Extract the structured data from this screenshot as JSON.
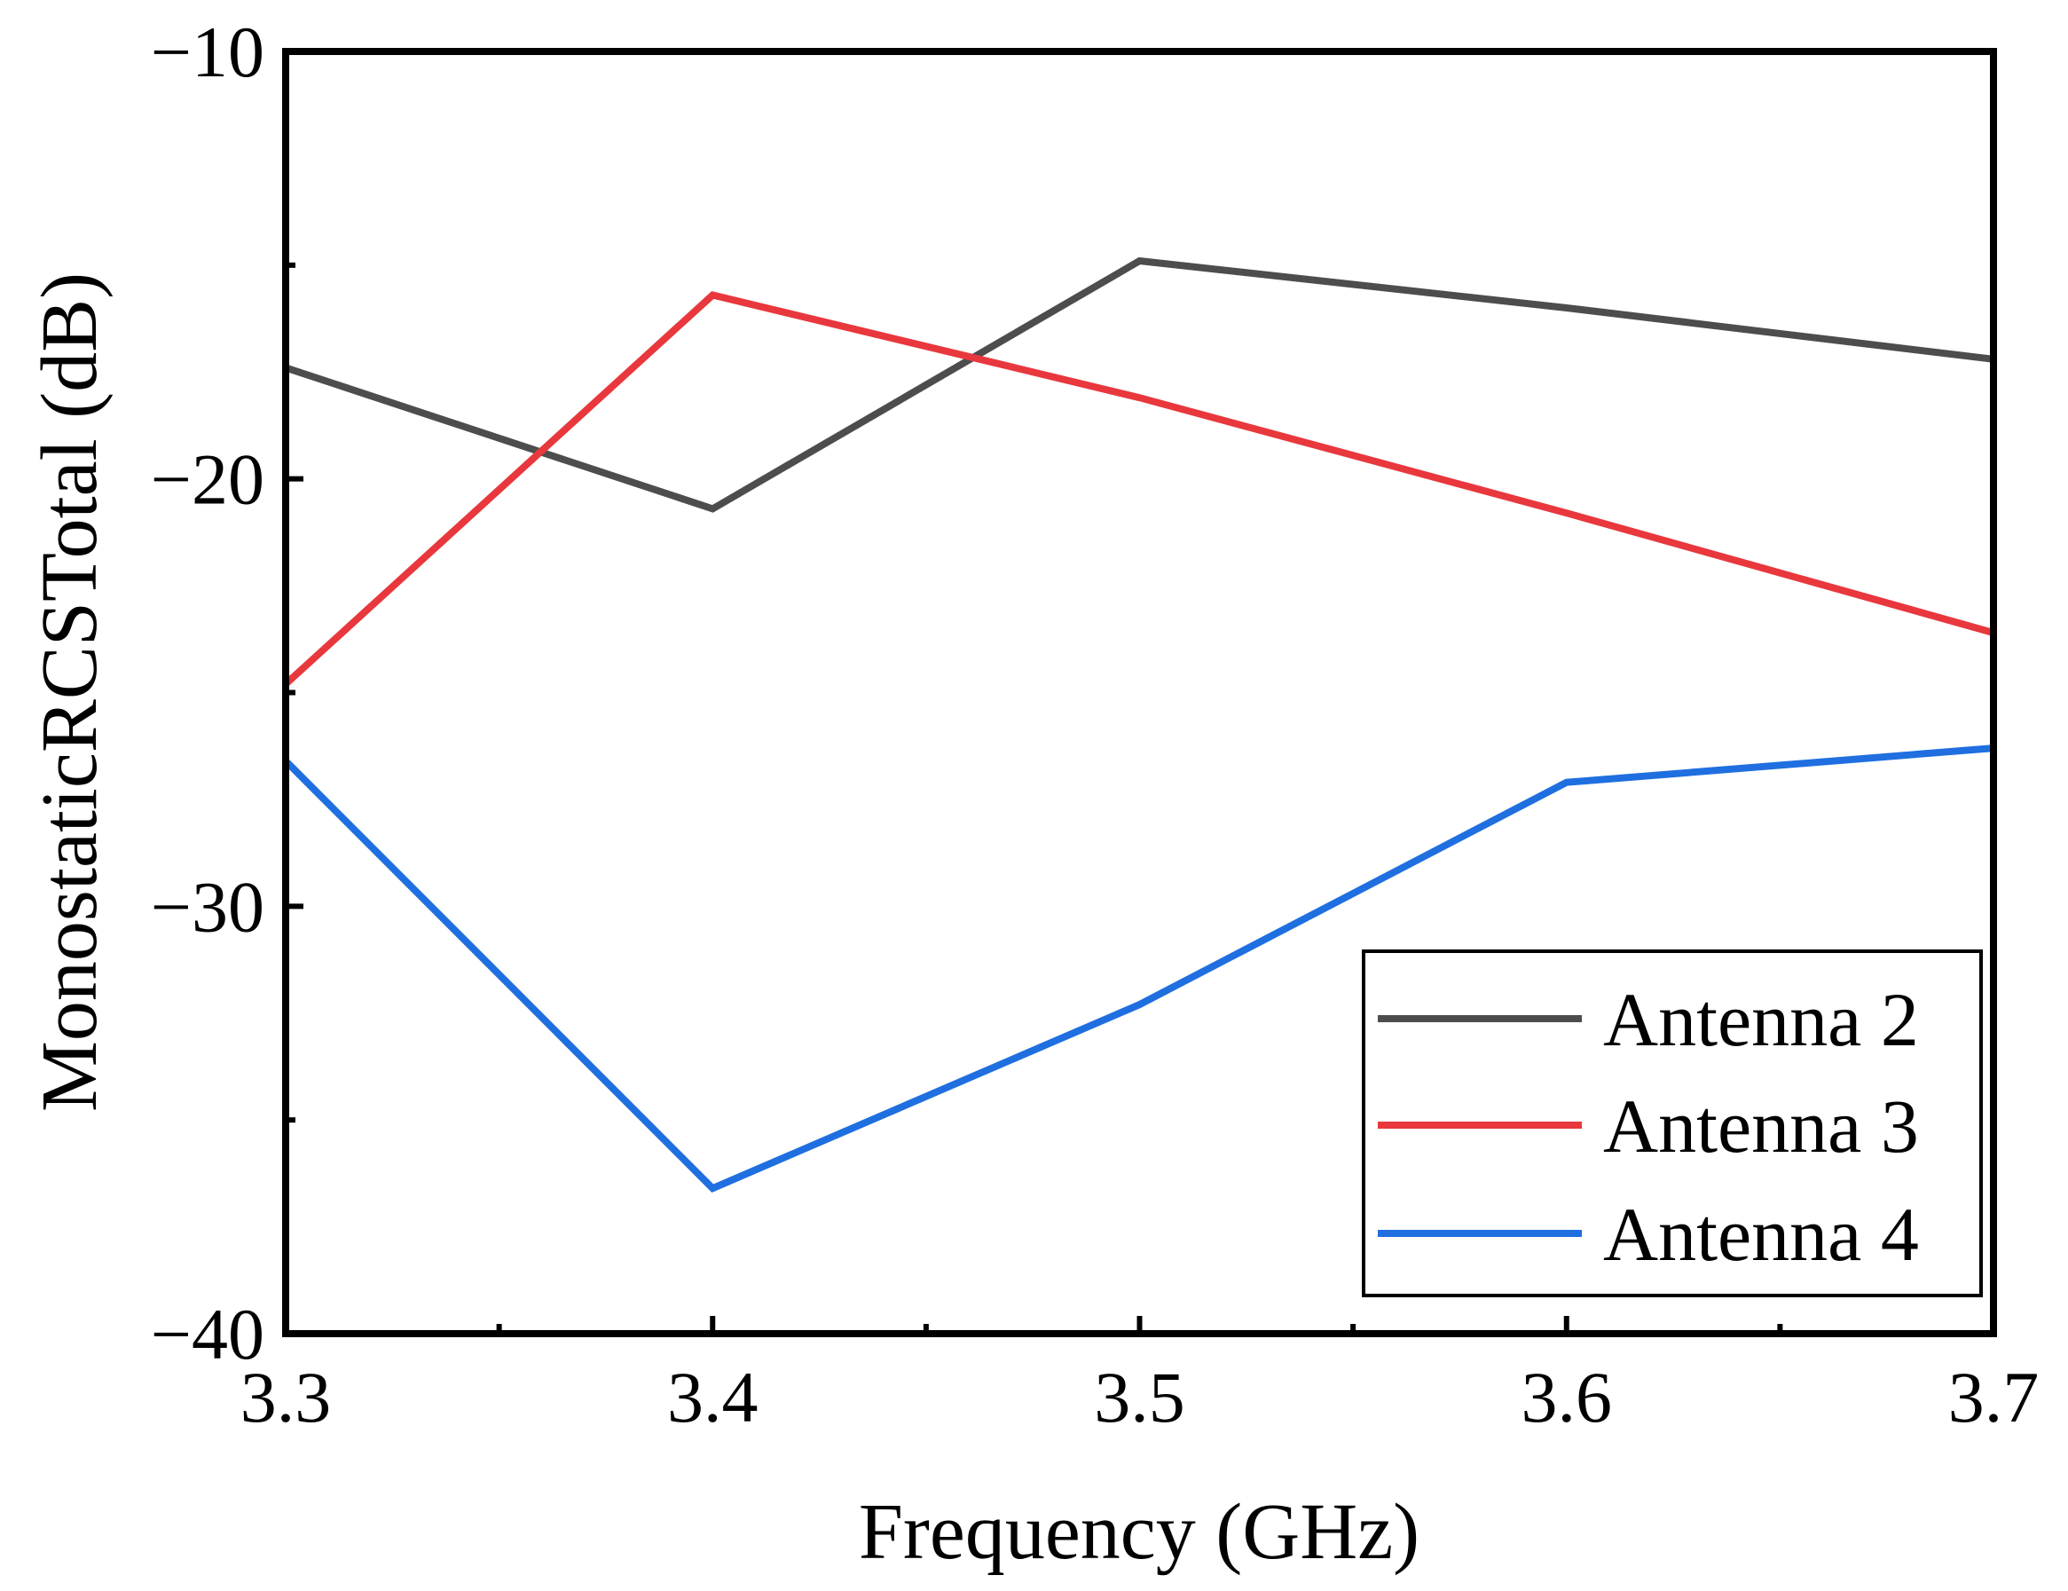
{
  "chart_data": {
    "type": "line",
    "title": "",
    "xlabel": "Frequency (GHz)",
    "ylabel": "MonostaticRCSTotal (dB)",
    "xlim": [
      3.3,
      3.7
    ],
    "ylim": [
      -40,
      -10
    ],
    "x_ticks": [
      "3.3",
      "3.4",
      "3.5",
      "3.6",
      "3.7"
    ],
    "y_ticks": [
      "−10",
      "−20",
      "−30",
      "−40"
    ],
    "x_tick_values": [
      3.3,
      3.4,
      3.5,
      3.6,
      3.7
    ],
    "y_tick_values": [
      -10,
      -20,
      -30,
      -40
    ],
    "x_minor_ticks": [
      3.35,
      3.45,
      3.55,
      3.65
    ],
    "y_minor_ticks": [
      -15,
      -25,
      -35
    ],
    "x": [
      3.3,
      3.4,
      3.5,
      3.6,
      3.7
    ],
    "series": [
      {
        "name": "Antenna 2",
        "color": "#4d4d4d",
        "values": [
          -17.4,
          -20.7,
          -14.9,
          -16.0,
          -17.2
        ]
      },
      {
        "name": "Antenna 3",
        "color": "#e8383d",
        "values": [
          -24.8,
          -15.7,
          -18.1,
          -20.8,
          -23.6
        ]
      },
      {
        "name": "Antenna 4",
        "color": "#1f6fe0",
        "values": [
          -26.6,
          -36.6,
          -32.3,
          -27.1,
          -26.3
        ]
      }
    ],
    "grid": false,
    "legend": {
      "position": "bottom-right"
    }
  }
}
